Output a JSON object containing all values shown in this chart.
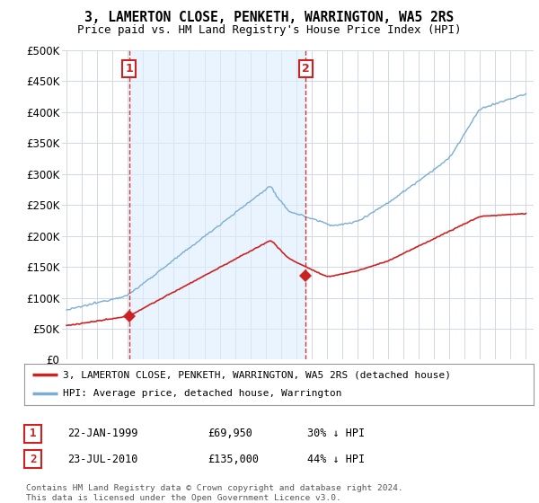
{
  "title": "3, LAMERTON CLOSE, PENKETH, WARRINGTON, WA5 2RS",
  "subtitle": "Price paid vs. HM Land Registry's House Price Index (HPI)",
  "hpi_color": "#7aadd4",
  "price_color": "#cc2222",
  "bg_color": "#ffffff",
  "grid_color": "#d0d8e8",
  "shade_color": "#ddeeff",
  "ylim": [
    0,
    500000
  ],
  "yticks": [
    0,
    50000,
    100000,
    150000,
    200000,
    250000,
    300000,
    350000,
    400000,
    450000,
    500000
  ],
  "sale1": {
    "date_label": "22-JAN-1999",
    "price": 69950,
    "hpi_pct": "30% ↓ HPI",
    "marker_x": 1999.1
  },
  "sale2": {
    "date_label": "23-JUL-2010",
    "price": 135000,
    "hpi_pct": "44% ↓ HPI",
    "marker_x": 2010.6
  },
  "legend_label1": "3, LAMERTON CLOSE, PENKETH, WARRINGTON, WA5 2RS (detached house)",
  "legend_label2": "HPI: Average price, detached house, Warrington",
  "footer": "Contains HM Land Registry data © Crown copyright and database right 2024.\nThis data is licensed under the Open Government Licence v3.0.",
  "vline1_x": 1999.1,
  "vline2_x": 2010.6,
  "xlim_start": 1994.7,
  "xlim_end": 2025.5
}
